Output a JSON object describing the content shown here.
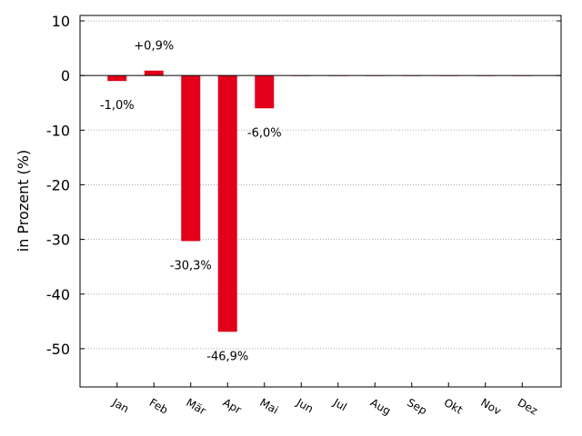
{
  "chart_data": {
    "type": "bar",
    "title": "",
    "xlabel": "",
    "ylabel": "in Prozent (%)",
    "categories": [
      "Jan",
      "Feb",
      "Mär",
      "Apr",
      "Mai",
      "Jun",
      "Jul",
      "Aug",
      "Sep",
      "Okt",
      "Nov",
      "Dez"
    ],
    "values": [
      -1.0,
      0.9,
      -30.3,
      -46.9,
      -6.0,
      0,
      0,
      0,
      0,
      0,
      0,
      0
    ],
    "data_labels": [
      "-1,0%",
      "+0,9%",
      "-30,3%",
      "-46,9%",
      "-6,0%",
      "",
      "",
      "",
      "",
      "",
      "",
      ""
    ],
    "ylim": [
      -57,
      11
    ],
    "yticks": [
      10,
      0,
      -10,
      -20,
      -30,
      -40,
      -50
    ],
    "ytick_labels": [
      "10",
      "0",
      "-10",
      "-20",
      "-30",
      "-40",
      "-50"
    ],
    "grid": "horizontal dotted",
    "bar_color": "#e2001a",
    "legend": "none"
  }
}
